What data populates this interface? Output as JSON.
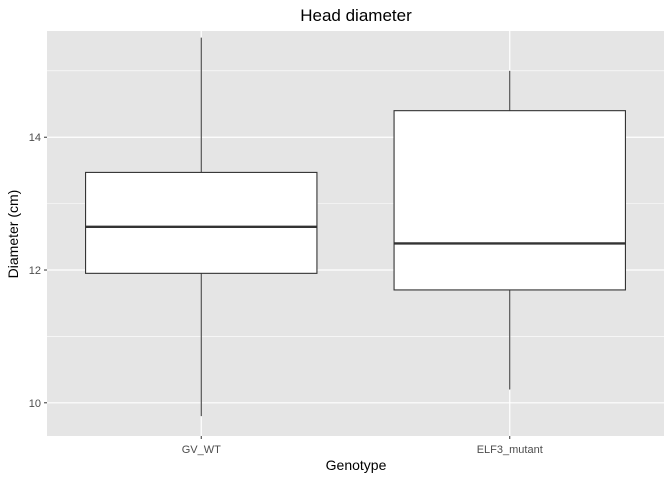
{
  "chart_data": {
    "type": "boxplot",
    "title": "Head diameter",
    "xlabel": "Genotype",
    "ylabel": "Diameter (cm)",
    "categories": [
      "GV_WT",
      "ELF3_mutant"
    ],
    "boxes": [
      {
        "category": "GV_WT",
        "min": 9.8,
        "q1": 11.95,
        "median": 12.65,
        "q3": 13.47,
        "max": 15.5
      },
      {
        "category": "ELF3_mutant",
        "min": 10.2,
        "q1": 11.7,
        "median": 12.4,
        "q3": 14.4,
        "max": 15.0
      }
    ],
    "ylim": [
      9.5,
      15.6
    ],
    "y_ticks": [
      10,
      12,
      14
    ],
    "y_tick_labels": [
      "10",
      "12",
      "14"
    ],
    "grid": true,
    "theme": "ggplot2-grey"
  },
  "colors": {
    "panel_background": "#e5e5e5",
    "grid_line": "#ffffff",
    "box_fill": "#ffffff",
    "box_stroke": "#333333",
    "tick_text": "#4d4d4d",
    "text": "#000000"
  }
}
